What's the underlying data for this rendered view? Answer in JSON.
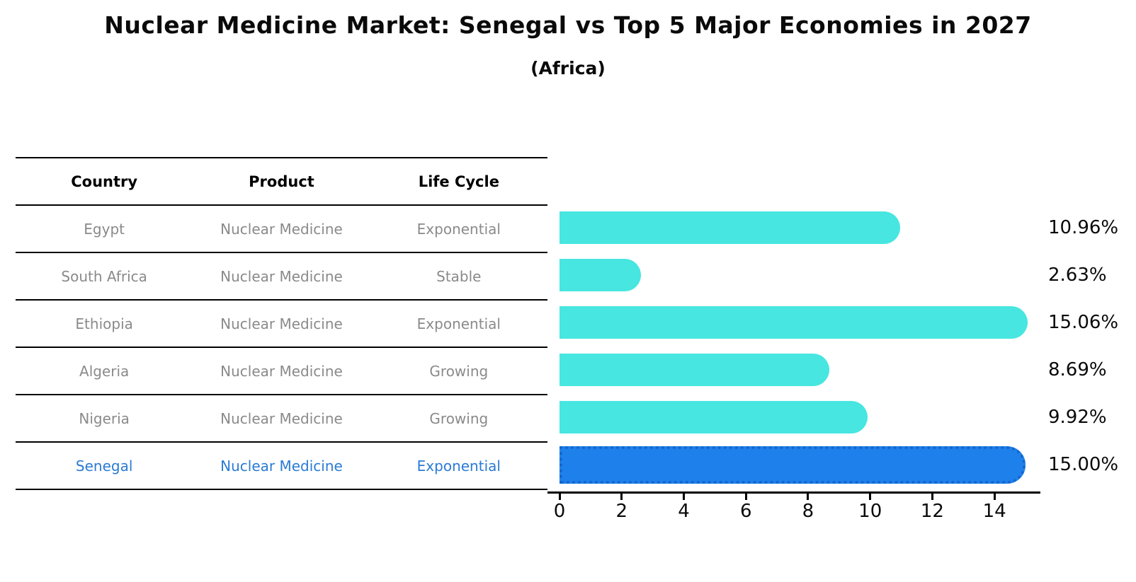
{
  "title": "Nuclear Medicine Market: Senegal vs Top 5 Major Economies in 2027",
  "subtitle": "(Africa)",
  "table": {
    "headers": [
      "Country",
      "Product",
      "Life Cycle"
    ],
    "rows": [
      {
        "country": "Egypt",
        "product": "Nuclear Medicine",
        "life_cycle": "Exponential",
        "highlight": false
      },
      {
        "country": "South Africa",
        "product": "Nuclear Medicine",
        "life_cycle": "Stable",
        "highlight": false
      },
      {
        "country": "Ethiopia",
        "product": "Nuclear Medicine",
        "life_cycle": "Exponential",
        "highlight": false
      },
      {
        "country": "Algeria",
        "product": "Nuclear Medicine",
        "life_cycle": "Growing",
        "highlight": false
      },
      {
        "country": "Nigeria",
        "product": "Nuclear Medicine",
        "life_cycle": "Growing",
        "highlight": false
      },
      {
        "country": "Senegal",
        "product": "Nuclear Medicine",
        "life_cycle": "Exponential",
        "highlight": true
      }
    ]
  },
  "chart_data": {
    "type": "bar",
    "orientation": "horizontal",
    "title": "Nuclear Medicine Market: Senegal vs Top 5 Major Economies in 2027",
    "subtitle": "(Africa)",
    "categories": [
      "Egypt",
      "South Africa",
      "Ethiopia",
      "Algeria",
      "Nigeria",
      "Senegal"
    ],
    "values": [
      10.96,
      2.63,
      15.06,
      8.69,
      9.92,
      15.0
    ],
    "value_labels": [
      "10.96%",
      "2.63%",
      "15.06%",
      "8.69%",
      "9.92%",
      "15.00%"
    ],
    "xlabel": "",
    "ylabel": "",
    "xlim": [
      0,
      15.5
    ],
    "x_ticks": [
      0,
      2,
      4,
      6,
      8,
      10,
      12,
      14
    ],
    "grid": false,
    "legend": false,
    "bar_color": "#47e6e0",
    "highlight_index": 5,
    "highlight_bar_color": "#1e80ea",
    "highlight_border_color": "#1566cc",
    "muted_text_color": "#8a8a8a",
    "highlight_text_color": "#2b7bd4"
  }
}
